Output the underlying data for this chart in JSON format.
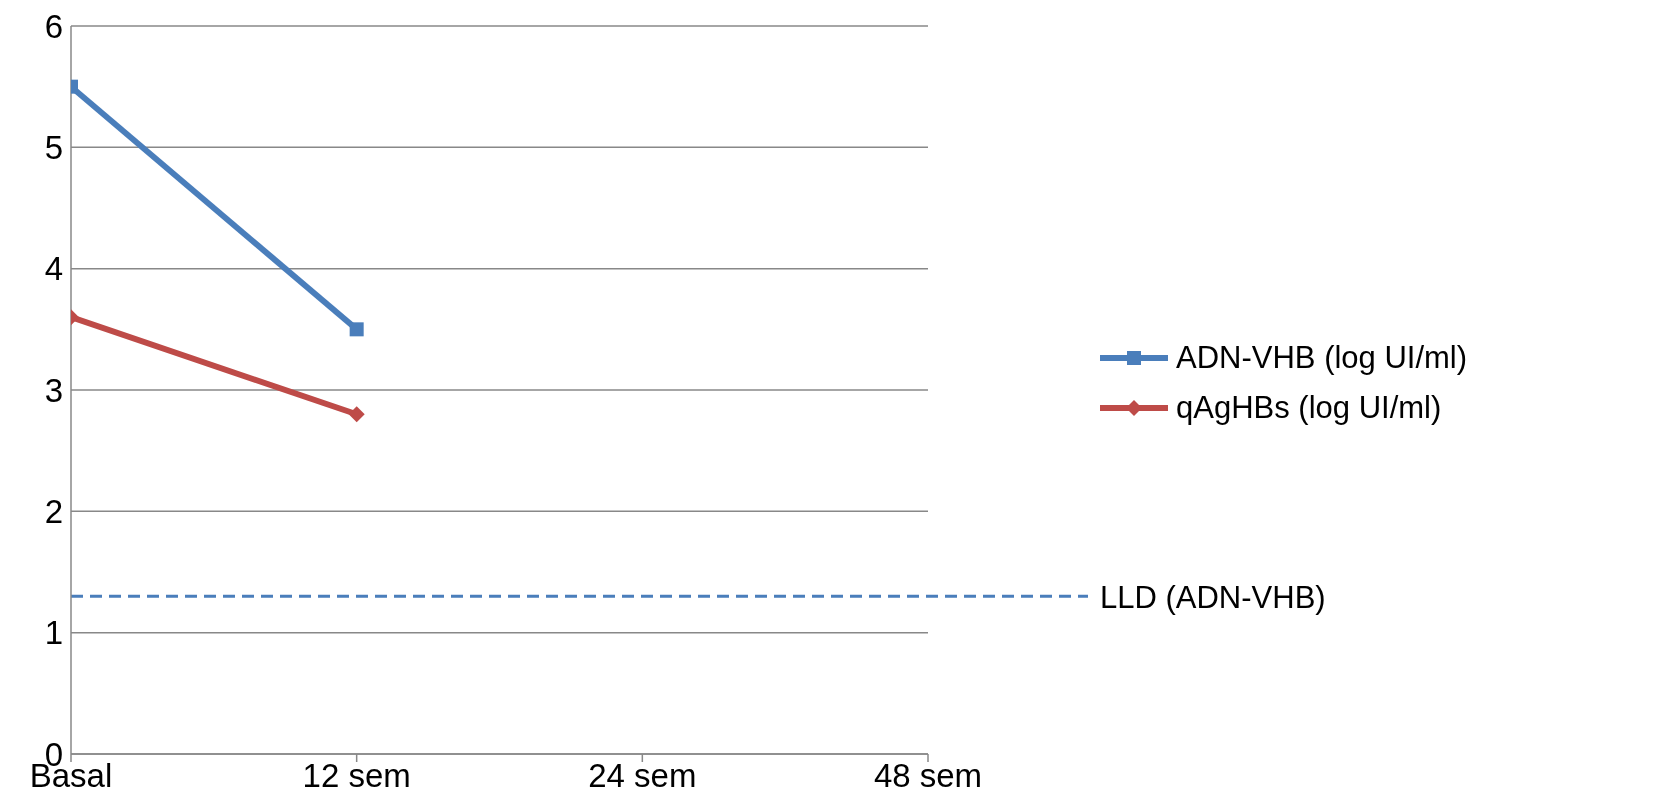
{
  "chart_data": {
    "type": "line",
    "categories": [
      "Basal",
      "12 sem",
      "24 sem",
      "48 sem"
    ],
    "series": [
      {
        "name": "ADN-VHB (log UI/ml)",
        "color": "#4a7ebb",
        "values": [
          5.5,
          3.5,
          null,
          null
        ],
        "marker": "square"
      },
      {
        "name": "qAgHBs (log UI/ml)",
        "color": "#be4b48",
        "values": [
          3.6,
          2.8,
          null,
          null
        ],
        "marker": "diamond"
      }
    ],
    "ylim": [
      0,
      6
    ],
    "yticks": [
      0,
      1,
      2,
      3,
      4,
      5,
      6
    ],
    "grid": "y",
    "legend": "right",
    "line_style": "solid",
    "ref_lines": [
      {
        "axis": "y",
        "value": 1.3,
        "label": "LLD (ADN-VHB)",
        "color": "#4a7ebb",
        "line_style": "dashed"
      }
    ]
  }
}
